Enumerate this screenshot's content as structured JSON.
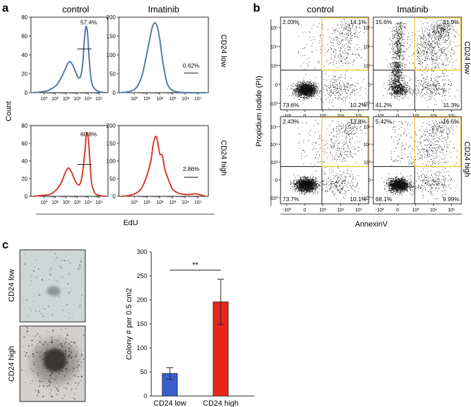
{
  "figure": {
    "panel_a": {
      "letter": "a",
      "col_titles": [
        "control",
        "Imatinib"
      ],
      "row_labels": [
        "CD24 low",
        "CD24 high"
      ],
      "y_label": "Count",
      "x_label": "EdU",
      "colors": {
        "low": "#5577aa",
        "high": "#d63a2a"
      }
    },
    "panel_b": {
      "letter": "b",
      "col_titles": [
        "control",
        "Imatinib"
      ],
      "row_labels": [
        "CD24 low",
        "CD24 high"
      ],
      "y_label": "Propidium Iodide (PI)",
      "x_label": "AnnexinV",
      "gate_color": "#f2c94c"
    },
    "panel_c": {
      "letter": "c",
      "image_labels": [
        "CD24 low",
        "CD24 high"
      ],
      "significance": "**"
    }
  },
  "chart_data": [
    {
      "id": "a-ctrl-low",
      "type": "line",
      "title": "control",
      "row": "CD24 low",
      "xlabel": "EdU",
      "ylabel": "Count",
      "xscale": "log",
      "x_ticks": [
        "10⁰",
        "10¹",
        "10²",
        "10³",
        "10⁴",
        "10⁵"
      ],
      "ylim": [
        0,
        80
      ],
      "y_ticks": [
        0,
        20,
        40,
        60,
        80
      ],
      "gate_label": "57.4%",
      "x": [
        -1,
        -0.2,
        0.3,
        0.8,
        1.2,
        1.6,
        2.0,
        2.3,
        2.6,
        2.9,
        3.1,
        3.3,
        3.5,
        3.65,
        3.8,
        3.95,
        4.1,
        4.3,
        4.6,
        5.0,
        5.6
      ],
      "values": [
        0,
        1,
        2,
        5,
        9,
        17,
        27,
        33,
        29,
        21,
        16,
        17,
        30,
        55,
        70,
        62,
        35,
        12,
        4,
        1,
        0
      ]
    },
    {
      "id": "a-imat-low",
      "type": "line",
      "title": "Imatinib",
      "row": "CD24 low",
      "xlabel": "EdU",
      "ylabel": "Count",
      "xscale": "log",
      "x_ticks": [
        "10⁰",
        "10¹",
        "10²",
        "10³",
        "10⁴",
        "10⁵"
      ],
      "ylim": [
        0,
        200
      ],
      "y_ticks": [
        0,
        50,
        100,
        150,
        200
      ],
      "gate_label": "0.62%",
      "x": [
        -1,
        -0.3,
        0.2,
        0.6,
        0.9,
        1.2,
        1.4,
        1.6,
        1.8,
        2.0,
        2.2,
        2.4,
        2.6,
        2.9,
        3.2,
        3.6,
        4.2,
        5.6
      ],
      "values": [
        0,
        4,
        15,
        45,
        90,
        140,
        172,
        185,
        175,
        140,
        90,
        50,
        22,
        8,
        3,
        1,
        0,
        0
      ]
    },
    {
      "id": "a-ctrl-high",
      "type": "line",
      "title": "control",
      "row": "CD24 high",
      "xlabel": "EdU",
      "ylabel": "Count",
      "xscale": "log",
      "x_ticks": [
        "10⁰",
        "10¹",
        "10²",
        "10³",
        "10⁴",
        "10⁵"
      ],
      "ylim": [
        0,
        80
      ],
      "y_ticks": [
        0,
        20,
        40,
        60,
        80
      ],
      "gate_label": "60.8%",
      "x": [
        -1,
        -0.2,
        0.5,
        1.0,
        1.5,
        1.9,
        2.2,
        2.5,
        2.8,
        3.1,
        3.3,
        3.5,
        3.7,
        3.85,
        4.0,
        4.15,
        4.3,
        4.6,
        5.0,
        5.6
      ],
      "values": [
        0,
        1,
        2,
        6,
        14,
        26,
        32,
        27,
        18,
        13,
        15,
        27,
        50,
        71,
        67,
        42,
        16,
        4,
        1,
        0
      ]
    },
    {
      "id": "a-imat-high",
      "type": "line",
      "title": "Imatinib",
      "row": "CD24 high",
      "xlabel": "EdU",
      "ylabel": "Count",
      "xscale": "log",
      "x_ticks": [
        "10⁰",
        "10¹",
        "10²",
        "10³",
        "10⁴",
        "10⁵"
      ],
      "ylim": [
        0,
        200
      ],
      "y_ticks": [
        0,
        50,
        100,
        150,
        200
      ],
      "gate_label": "2.86%",
      "x": [
        -1,
        -0.3,
        0.2,
        0.6,
        1.0,
        1.3,
        1.5,
        1.7,
        1.85,
        2.0,
        2.2,
        2.4,
        2.7,
        3.0,
        3.4,
        3.8,
        4.3,
        4.8,
        5.2,
        5.6
      ],
      "values": [
        0,
        3,
        10,
        25,
        60,
        100,
        150,
        170,
        150,
        120,
        115,
        75,
        45,
        20,
        10,
        6,
        5,
        7,
        4,
        0
      ]
    },
    {
      "id": "b-ctrl-low",
      "type": "scatter",
      "title": "control",
      "row": "CD24 low",
      "xlabel": "AnnexinV",
      "ylabel": "Propidium Iodide (PI)",
      "x_ticks": [
        "-10³",
        "0",
        "10³",
        "10⁴",
        "10⁵"
      ],
      "y_ticks": [
        "-10³",
        "0",
        "10³",
        "10⁴",
        "10⁵"
      ],
      "quadrants": {
        "upper_left": "2.03%",
        "upper_right": "14.1%",
        "lower_left": "73.6%",
        "lower_right": "10.2%"
      },
      "density": {
        "ll": 0.74,
        "lr": 0.1,
        "ur": 0.14,
        "ul": 0.02,
        "mode": "ll"
      }
    },
    {
      "id": "b-imat-low",
      "type": "scatter",
      "title": "Imatinib",
      "row": "CD24 low",
      "xlabel": "AnnexinV",
      "ylabel": "Propidium Iodide (PI)",
      "x_ticks": [
        "-10³",
        "0",
        "10³",
        "10⁴",
        "10⁵"
      ],
      "y_ticks": [
        "-10³",
        "0",
        "10³",
        "10⁴",
        "10⁵"
      ],
      "quadrants": {
        "upper_left": "15.6%",
        "upper_right": "31.9%",
        "lower_left": "41.2%",
        "lower_right": "11.3%"
      },
      "density": {
        "ll": 0.41,
        "lr": 0.11,
        "ur": 0.32,
        "ul": 0.16,
        "mode": "stream"
      }
    },
    {
      "id": "b-ctrl-high",
      "type": "scatter",
      "title": "control",
      "row": "CD24 high",
      "xlabel": "AnnexinV",
      "ylabel": "Propidium Iodide (PI)",
      "x_ticks": [
        "-10³",
        "0",
        "10³",
        "10⁴",
        "10⁵"
      ],
      "y_ticks": [
        "-10³",
        "0",
        "10³",
        "10⁴",
        "10⁵"
      ],
      "quadrants": {
        "upper_left": "2.43%",
        "upper_right": "13.8%",
        "lower_left": "73.7%",
        "lower_right": "10.1%"
      },
      "density": {
        "ll": 0.74,
        "lr": 0.1,
        "ur": 0.14,
        "ul": 0.02,
        "mode": "ll"
      }
    },
    {
      "id": "b-imat-high",
      "type": "scatter",
      "title": "Imatinib",
      "row": "CD24 high",
      "xlabel": "AnnexinV",
      "ylabel": "Propidium Iodide (PI)",
      "x_ticks": [
        "-10³",
        "0",
        "10³",
        "10⁴",
        "10⁵"
      ],
      "y_ticks": [
        "-10³",
        "0",
        "10³",
        "10⁴",
        "10⁵"
      ],
      "quadrants": {
        "upper_left": "5.42%",
        "upper_right": "16.5%",
        "lower_left": "68.1%",
        "lower_right": "9.99%"
      },
      "density": {
        "ll": 0.68,
        "lr": 0.1,
        "ur": 0.17,
        "ul": 0.05,
        "mode": "ll"
      }
    },
    {
      "id": "c-bar",
      "type": "bar",
      "categories": [
        "CD24 low",
        "CD24 high"
      ],
      "values": [
        47,
        196
      ],
      "errors": [
        12,
        47
      ],
      "colors": [
        "#3a5fcd",
        "#e8271b"
      ],
      "ylabel": "Colony # per 0.5 cm2",
      "ylim": [
        0,
        300
      ],
      "y_ticks": [
        0,
        50,
        100,
        150,
        200,
        250,
        300
      ],
      "significance": "**"
    }
  ]
}
